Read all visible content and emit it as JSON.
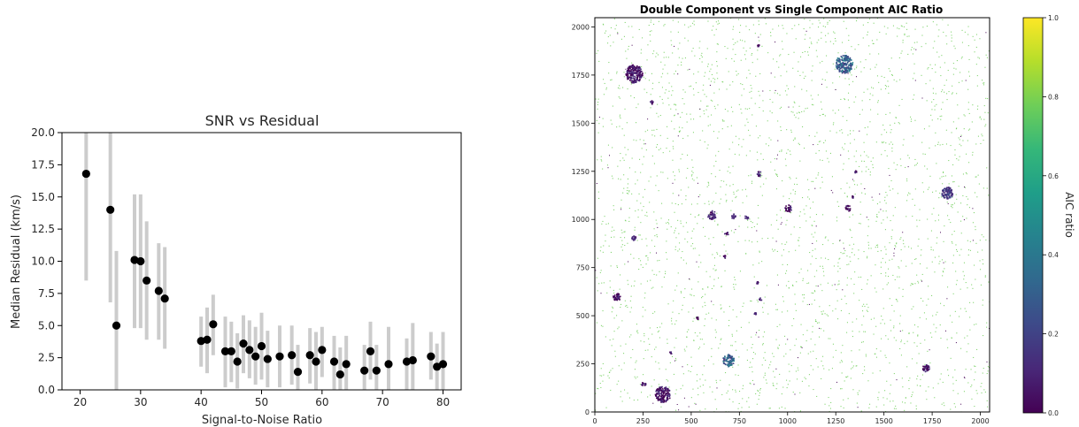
{
  "chart_data": [
    {
      "type": "scatter",
      "title": "SNR vs Residual",
      "xlabel": "Signal-to-Noise Ratio",
      "ylabel": "Median Residual (km/s)",
      "xlim": [
        17,
        83
      ],
      "ylim": [
        0,
        20
      ],
      "xticks": [
        20,
        30,
        40,
        50,
        60,
        70,
        80
      ],
      "yticks": [
        0.0,
        2.5,
        5.0,
        7.5,
        10.0,
        12.5,
        15.0,
        17.5,
        20.0
      ],
      "xtick_labels": [
        "20",
        "30",
        "40",
        "50",
        "60",
        "70",
        "80"
      ],
      "ytick_labels": [
        "0.0",
        "2.5",
        "5.0",
        "7.5",
        "10.0",
        "12.5",
        "15.0",
        "17.5",
        "20.0"
      ],
      "marker_color": "#000000",
      "errorbar_color": "#cccccc",
      "points": [
        {
          "x": 21,
          "y": 16.8,
          "lo": 8.5,
          "hi": 20.0
        },
        {
          "x": 25,
          "y": 14.0,
          "lo": 6.8,
          "hi": 20.0
        },
        {
          "x": 26,
          "y": 5.0,
          "lo": 0.0,
          "hi": 10.8
        },
        {
          "x": 29,
          "y": 10.1,
          "lo": 4.8,
          "hi": 15.2
        },
        {
          "x": 30,
          "y": 10.0,
          "lo": 4.8,
          "hi": 15.2
        },
        {
          "x": 31,
          "y": 8.5,
          "lo": 3.9,
          "hi": 13.1
        },
        {
          "x": 33,
          "y": 7.7,
          "lo": 3.9,
          "hi": 11.4
        },
        {
          "x": 34,
          "y": 7.1,
          "lo": 3.2,
          "hi": 11.1
        },
        {
          "x": 40,
          "y": 3.8,
          "lo": 1.8,
          "hi": 5.7
        },
        {
          "x": 41,
          "y": 3.9,
          "lo": 1.3,
          "hi": 6.4
        },
        {
          "x": 42,
          "y": 5.1,
          "lo": 2.7,
          "hi": 7.4
        },
        {
          "x": 44,
          "y": 3.0,
          "lo": 0.2,
          "hi": 5.7
        },
        {
          "x": 45,
          "y": 3.0,
          "lo": 0.6,
          "hi": 5.3
        },
        {
          "x": 46,
          "y": 2.2,
          "lo": 0.1,
          "hi": 4.4
        },
        {
          "x": 47,
          "y": 3.6,
          "lo": 1.3,
          "hi": 5.8
        },
        {
          "x": 48,
          "y": 3.1,
          "lo": 0.9,
          "hi": 5.4
        },
        {
          "x": 49,
          "y": 2.6,
          "lo": 0.4,
          "hi": 4.9
        },
        {
          "x": 50,
          "y": 3.4,
          "lo": 0.8,
          "hi": 6.0
        },
        {
          "x": 51,
          "y": 2.4,
          "lo": 0.2,
          "hi": 4.6
        },
        {
          "x": 53,
          "y": 2.6,
          "lo": 0.2,
          "hi": 5.0
        },
        {
          "x": 55,
          "y": 2.7,
          "lo": 0.4,
          "hi": 5.0
        },
        {
          "x": 56,
          "y": 1.4,
          "lo": 0.0,
          "hi": 3.5
        },
        {
          "x": 58,
          "y": 2.7,
          "lo": 0.5,
          "hi": 4.8
        },
        {
          "x": 59,
          "y": 2.2,
          "lo": 0.0,
          "hi": 4.5
        },
        {
          "x": 60,
          "y": 3.1,
          "lo": 1.0,
          "hi": 4.9
        },
        {
          "x": 62,
          "y": 2.2,
          "lo": 0.0,
          "hi": 4.2
        },
        {
          "x": 63,
          "y": 1.2,
          "lo": 0.0,
          "hi": 3.3
        },
        {
          "x": 64,
          "y": 2.0,
          "lo": 0.0,
          "hi": 4.2
        },
        {
          "x": 67,
          "y": 1.5,
          "lo": 0.0,
          "hi": 3.5
        },
        {
          "x": 68,
          "y": 3.0,
          "lo": 0.8,
          "hi": 5.3
        },
        {
          "x": 69,
          "y": 1.5,
          "lo": 0.0,
          "hi": 3.5
        },
        {
          "x": 71,
          "y": 2.0,
          "lo": 0.0,
          "hi": 4.9
        },
        {
          "x": 74,
          "y": 2.2,
          "lo": 0.0,
          "hi": 4.0
        },
        {
          "x": 75,
          "y": 2.3,
          "lo": 0.0,
          "hi": 5.2
        },
        {
          "x": 78,
          "y": 2.6,
          "lo": 0.8,
          "hi": 4.5
        },
        {
          "x": 79,
          "y": 1.8,
          "lo": 0.0,
          "hi": 3.6
        },
        {
          "x": 80,
          "y": 2.0,
          "lo": 0.0,
          "hi": 4.5
        }
      ]
    },
    {
      "type": "heatmap",
      "title": "Double Component vs Single Component AIC Ratio",
      "xlim": [
        0,
        2048
      ],
      "ylim": [
        0,
        2048
      ],
      "xticks": [
        0,
        250,
        500,
        750,
        1000,
        1250,
        1500,
        1750,
        2000
      ],
      "yticks": [
        0,
        250,
        500,
        750,
        1000,
        1250,
        1500,
        1750,
        2000
      ],
      "xtick_labels": [
        "0",
        "250",
        "500",
        "750",
        "1000",
        "1250",
        "1500",
        "1750",
        "2000"
      ],
      "ytick_labels": [
        "0",
        "250",
        "500",
        "750",
        "1000",
        "1250",
        "1500",
        "1750",
        "2000"
      ],
      "colorbar": {
        "label": "AIC ratio",
        "range": [
          0.0,
          1.0
        ],
        "ticks": [
          0.0,
          0.2,
          0.4,
          0.6,
          0.8,
          1.0
        ],
        "tick_labels": [
          "0.0",
          "0.2",
          "0.4",
          "0.6",
          "0.8",
          "1.0"
        ],
        "colormap": "viridis",
        "stops": [
          "#440154",
          "#482878",
          "#3e4989",
          "#31688e",
          "#26828e",
          "#1f9e89",
          "#35b779",
          "#6ece58",
          "#b5de2b",
          "#fde725"
        ]
      },
      "background_color": "#ffffff",
      "scatter_pixel_value": 0.78,
      "clusters": [
        {
          "x": 200,
          "y": 1760,
          "r": 45,
          "value": 0.05
        },
        {
          "x": 1290,
          "y": 1810,
          "r": 45,
          "value": 0.3
        },
        {
          "x": 290,
          "y": 1610,
          "r": 10,
          "value": 0.05
        },
        {
          "x": 845,
          "y": 1905,
          "r": 6,
          "value": 0.05
        },
        {
          "x": 1825,
          "y": 1140,
          "r": 30,
          "value": 0.15
        },
        {
          "x": 605,
          "y": 1025,
          "r": 22,
          "value": 0.1
        },
        {
          "x": 715,
          "y": 1020,
          "r": 12,
          "value": 0.1
        },
        {
          "x": 785,
          "y": 1015,
          "r": 10,
          "value": 0.1
        },
        {
          "x": 1000,
          "y": 1060,
          "r": 18,
          "value": 0.05
        },
        {
          "x": 1310,
          "y": 1060,
          "r": 15,
          "value": 0.05
        },
        {
          "x": 850,
          "y": 1240,
          "r": 12,
          "value": 0.05
        },
        {
          "x": 1350,
          "y": 1250,
          "r": 6,
          "value": 0.05
        },
        {
          "x": 1335,
          "y": 1120,
          "r": 6,
          "value": 0.05
        },
        {
          "x": 200,
          "y": 905,
          "r": 12,
          "value": 0.1
        },
        {
          "x": 680,
          "y": 930,
          "r": 10,
          "value": 0.05
        },
        {
          "x": 670,
          "y": 810,
          "r": 8,
          "value": 0.05
        },
        {
          "x": 840,
          "y": 675,
          "r": 6,
          "value": 0.05
        },
        {
          "x": 110,
          "y": 600,
          "r": 20,
          "value": 0.05
        },
        {
          "x": 855,
          "y": 590,
          "r": 8,
          "value": 0.1
        },
        {
          "x": 830,
          "y": 515,
          "r": 6,
          "value": 0.05
        },
        {
          "x": 530,
          "y": 490,
          "r": 6,
          "value": 0.05
        },
        {
          "x": 250,
          "y": 150,
          "r": 12,
          "value": 0.05
        },
        {
          "x": 390,
          "y": 310,
          "r": 6,
          "value": 0.05
        },
        {
          "x": 690,
          "y": 270,
          "r": 30,
          "value": 0.3
        },
        {
          "x": 350,
          "y": 95,
          "r": 40,
          "value": 0.05
        },
        {
          "x": 1715,
          "y": 230,
          "r": 18,
          "value": 0.05
        }
      ]
    }
  ]
}
